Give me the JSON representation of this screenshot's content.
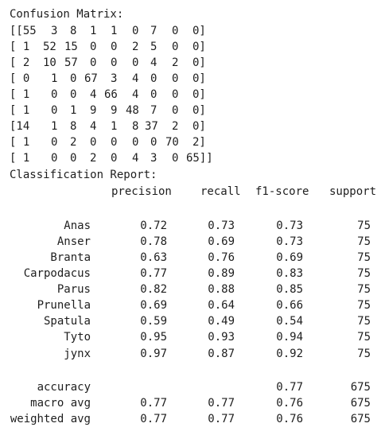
{
  "output": {
    "confusion_title": "Confusion Matrix:",
    "matrix_rows": [
      [
        "[[55",
        "3",
        "8",
        "1",
        "1",
        "0",
        "7",
        "0",
        "0]"
      ],
      [
        "[ 1",
        "52",
        "15",
        "0",
        "0",
        "2",
        "5",
        "0",
        "0]"
      ],
      [
        "[ 2",
        "10",
        "57",
        "0",
        "0",
        "0",
        "4",
        "2",
        "0]"
      ],
      [
        "[ 0",
        "1",
        "0",
        "67",
        "3",
        "4",
        "0",
        "0",
        "0]"
      ],
      [
        "[ 1",
        "0",
        "0",
        "4",
        "66",
        "4",
        "0",
        "0",
        "0]"
      ],
      [
        "[ 1",
        "0",
        "1",
        "9",
        "9",
        "48",
        "7",
        "0",
        "0]"
      ],
      [
        "[14",
        "1",
        "8",
        "4",
        "1",
        "8",
        "37",
        "2",
        "0]"
      ],
      [
        "[ 1",
        "0",
        "2",
        "0",
        "0",
        "0",
        "0",
        "70",
        "2]"
      ],
      [
        "[ 1",
        "0",
        "0",
        "2",
        "0",
        "4",
        "3",
        "0",
        "65]]"
      ]
    ],
    "report_title": "Classification Report:",
    "report_headers": [
      "precision",
      "recall",
      "f1-score",
      "support"
    ],
    "class_rows": [
      {
        "label": "Anas",
        "precision": "0.72",
        "recall": "0.73",
        "f1": "0.73",
        "support": "75"
      },
      {
        "label": "Anser",
        "precision": "0.78",
        "recall": "0.69",
        "f1": "0.73",
        "support": "75"
      },
      {
        "label": "Branta",
        "precision": "0.63",
        "recall": "0.76",
        "f1": "0.69",
        "support": "75"
      },
      {
        "label": "Carpodacus",
        "precision": "0.77",
        "recall": "0.89",
        "f1": "0.83",
        "support": "75"
      },
      {
        "label": "Parus",
        "precision": "0.82",
        "recall": "0.88",
        "f1": "0.85",
        "support": "75"
      },
      {
        "label": "Prunella",
        "precision": "0.69",
        "recall": "0.64",
        "f1": "0.66",
        "support": "75"
      },
      {
        "label": "Spatula",
        "precision": "0.59",
        "recall": "0.49",
        "f1": "0.54",
        "support": "75"
      },
      {
        "label": "Tyto",
        "precision": "0.95",
        "recall": "0.93",
        "f1": "0.94",
        "support": "75"
      },
      {
        "label": "jynx",
        "precision": "0.97",
        "recall": "0.87",
        "f1": "0.92",
        "support": "75"
      }
    ],
    "summary_rows": [
      {
        "label": "accuracy",
        "precision": "",
        "recall": "",
        "f1": "0.77",
        "support": "675"
      },
      {
        "label": "macro avg",
        "precision": "0.77",
        "recall": "0.77",
        "f1": "0.76",
        "support": "675"
      },
      {
        "label": "weighted avg",
        "precision": "0.77",
        "recall": "0.77",
        "f1": "0.76",
        "support": "675"
      }
    ]
  }
}
